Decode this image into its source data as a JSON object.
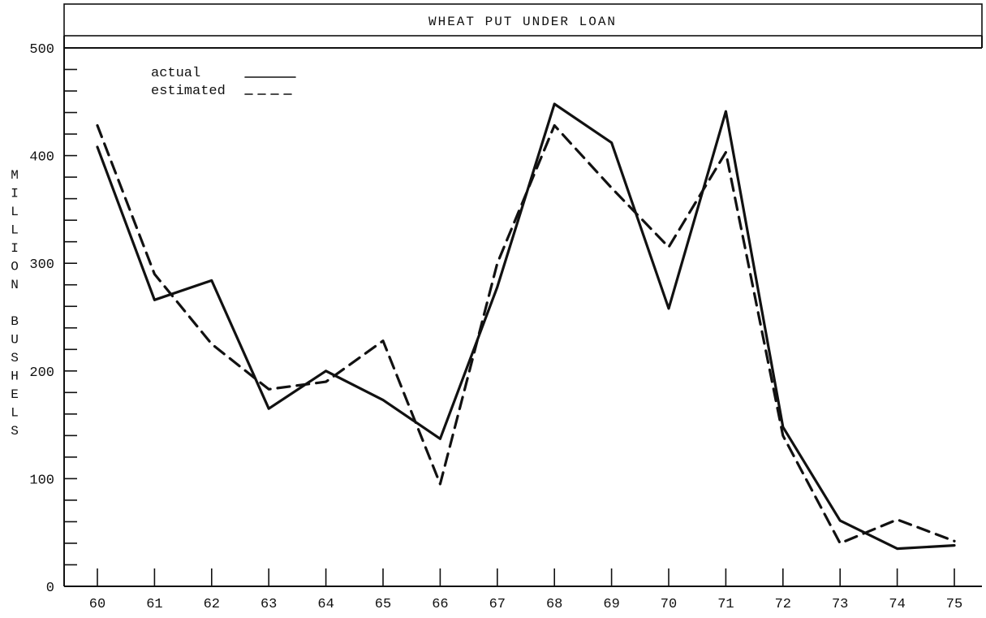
{
  "chart_data": {
    "type": "line",
    "title": "WHEAT PUT UNDER LOAN",
    "xlabel": "",
    "ylabel": "MILLION BUSHELS",
    "x": [
      "60",
      "61",
      "62",
      "63",
      "64",
      "65",
      "66",
      "67",
      "68",
      "69",
      "70",
      "71",
      "72",
      "73",
      "74",
      "75"
    ],
    "ylim": [
      0,
      500
    ],
    "yticks_major": [
      0,
      100,
      200,
      300,
      400,
      500
    ],
    "ytick_labels": [
      "0",
      "100",
      "200",
      "300",
      "400",
      "500"
    ],
    "yticks_minor_step": 20,
    "grid": false,
    "legend": {
      "placement": "top-left"
    },
    "series": [
      {
        "name": "actual",
        "style": "solid",
        "values": [
          408,
          266,
          284,
          165,
          200,
          173,
          137,
          278,
          448,
          412,
          258,
          441,
          148,
          61,
          35,
          38
        ]
      },
      {
        "name": "estimated",
        "style": "dashed",
        "values": [
          428,
          290,
          225,
          183,
          190,
          228,
          95,
          300,
          428,
          370,
          315,
          403,
          140,
          40,
          62,
          42
        ]
      }
    ]
  }
}
